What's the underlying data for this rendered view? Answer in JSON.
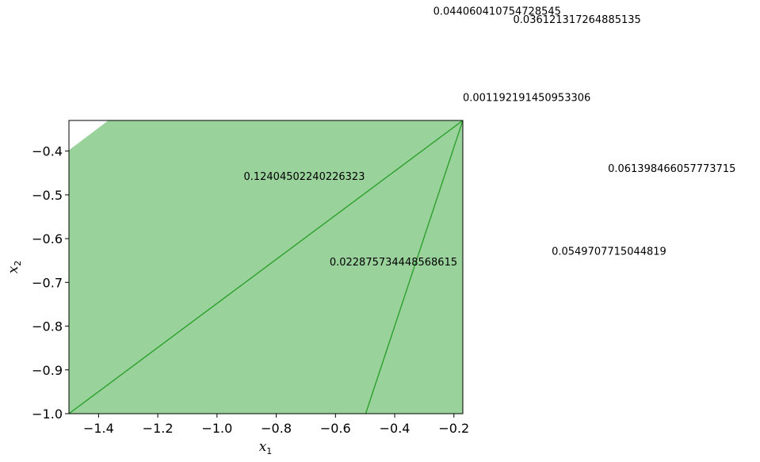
{
  "chart_data": {
    "type": "area",
    "xlabel": {
      "base": "x",
      "sub": "1"
    },
    "ylabel": {
      "base": "x",
      "sub": "2"
    },
    "xlim": [
      -1.5,
      -0.17
    ],
    "ylim": [
      -1.0,
      -0.33
    ],
    "xticks": [
      {
        "value": -1.4,
        "label": "−1.4"
      },
      {
        "value": -1.2,
        "label": "−1.2"
      },
      {
        "value": -1.0,
        "label": "−1.0"
      },
      {
        "value": -0.8,
        "label": "−0.8"
      },
      {
        "value": -0.6,
        "label": "−0.6"
      },
      {
        "value": -0.4,
        "label": "−0.4"
      },
      {
        "value": -0.2,
        "label": "−0.2"
      }
    ],
    "yticks": [
      {
        "value": -0.4,
        "label": "−0.4"
      },
      {
        "value": -0.5,
        "label": "−0.5"
      },
      {
        "value": -0.6,
        "label": "−0.6"
      },
      {
        "value": -0.7,
        "label": "−0.7"
      },
      {
        "value": -0.8,
        "label": "−0.8"
      },
      {
        "value": -0.9,
        "label": "−0.9"
      },
      {
        "value": -1.0,
        "label": "−1.0"
      }
    ],
    "regions": [
      {
        "polygon": [
          [
            -1.5,
            -1.0
          ],
          [
            -0.17,
            -1.0
          ],
          [
            -0.17,
            -0.33
          ],
          [
            -1.367,
            -0.33
          ],
          [
            -1.5,
            -0.398
          ]
        ]
      }
    ],
    "lines": [
      {
        "points": [
          [
            -1.5,
            -1.0
          ],
          [
            -0.17,
            -0.33
          ]
        ]
      },
      {
        "points": [
          [
            -0.498,
            -1.0
          ],
          [
            -0.17,
            -0.33
          ]
        ]
      }
    ],
    "annotations": [
      {
        "text": "0.044060410754728545",
        "x": -0.27,
        "y": -0.079
      },
      {
        "text": "0.036121317264885135",
        "x": -0.0,
        "y": -0.098
      },
      {
        "text": "0.001192191450953306",
        "x": -0.17,
        "y": -0.277
      },
      {
        "text": "0.061398466057773715",
        "x": 0.32,
        "y": -0.439
      },
      {
        "text": "0.12404502240226323",
        "x": -0.91,
        "y": -0.457
      },
      {
        "text": "0.0549707715044819",
        "x": 0.13,
        "y": -0.628
      },
      {
        "text": "0.022875734448568615",
        "x": -0.62,
        "y": -0.652
      }
    ],
    "colors": {
      "fill": "#4caf50",
      "fill_alpha": 0.57,
      "line": "#2ca02c"
    },
    "grid": false
  }
}
